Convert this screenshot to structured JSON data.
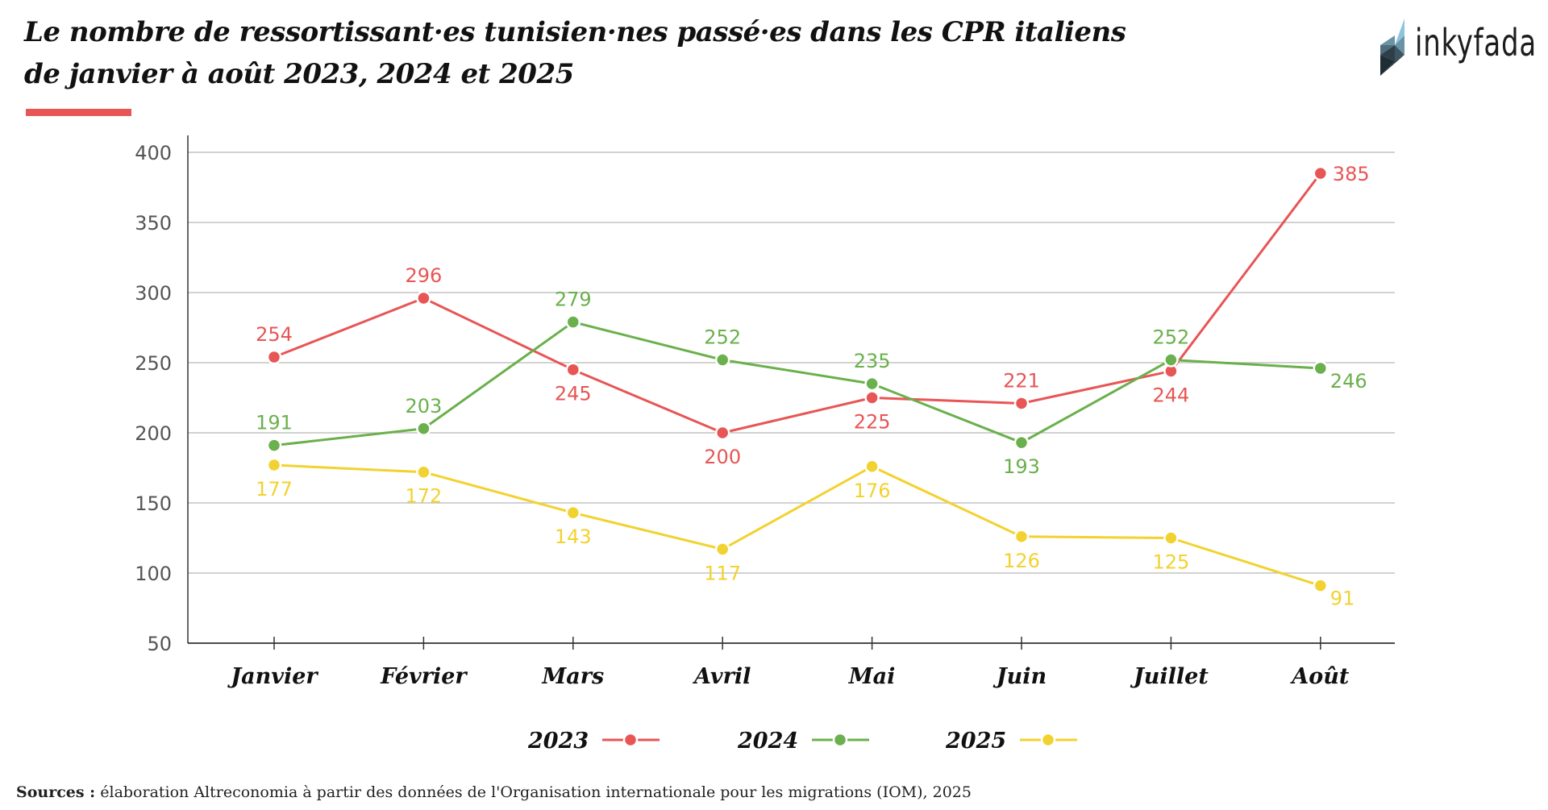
{
  "header": {
    "title_line1": "Le nombre de ressortissant·es tunisien·nes passé·es dans les CPR italiens",
    "title_line2": "de janvier à août 2023, 2024 et 2025",
    "logo_text": "inkyfada",
    "accent_color": "#e85555"
  },
  "footer": {
    "sources_label": "Sources :",
    "sources_text": "élaboration Altreconomia à partir des données de l'Organisation internationale pour les migrations (IOM), 2025"
  },
  "chart_data": {
    "type": "line",
    "title": "Le nombre de ressortissant·es tunisien·nes passé·es dans les CPR italiens de janvier à août 2023, 2024 et 2025",
    "xlabel": "",
    "ylabel": "",
    "categories": [
      "Janvier",
      "Février",
      "Mars",
      "Avril",
      "Mai",
      "Juin",
      "Juillet",
      "Août"
    ],
    "ylim": [
      50,
      400
    ],
    "yticks": [
      50,
      100,
      150,
      200,
      250,
      300,
      350,
      400
    ],
    "grid": true,
    "legend_position": "bottom-center",
    "series": [
      {
        "name": "2023",
        "color": "#e85555",
        "values": [
          254,
          296,
          245,
          200,
          225,
          221,
          244,
          385
        ],
        "label_pos": [
          "above",
          "above",
          "below",
          "below",
          "below",
          "above",
          "below",
          "right"
        ]
      },
      {
        "name": "2024",
        "color": "#6ab04c",
        "values": [
          191,
          203,
          279,
          252,
          235,
          193,
          252,
          246
        ],
        "label_pos": [
          "above",
          "above",
          "above",
          "above",
          "above",
          "below",
          "above",
          "right-below"
        ]
      },
      {
        "name": "2025",
        "color": "#f2d230",
        "values": [
          177,
          172,
          143,
          117,
          176,
          126,
          125,
          91
        ],
        "label_pos": [
          "below",
          "below",
          "below",
          "below",
          "below",
          "below",
          "below",
          "right-below"
        ]
      }
    ]
  }
}
